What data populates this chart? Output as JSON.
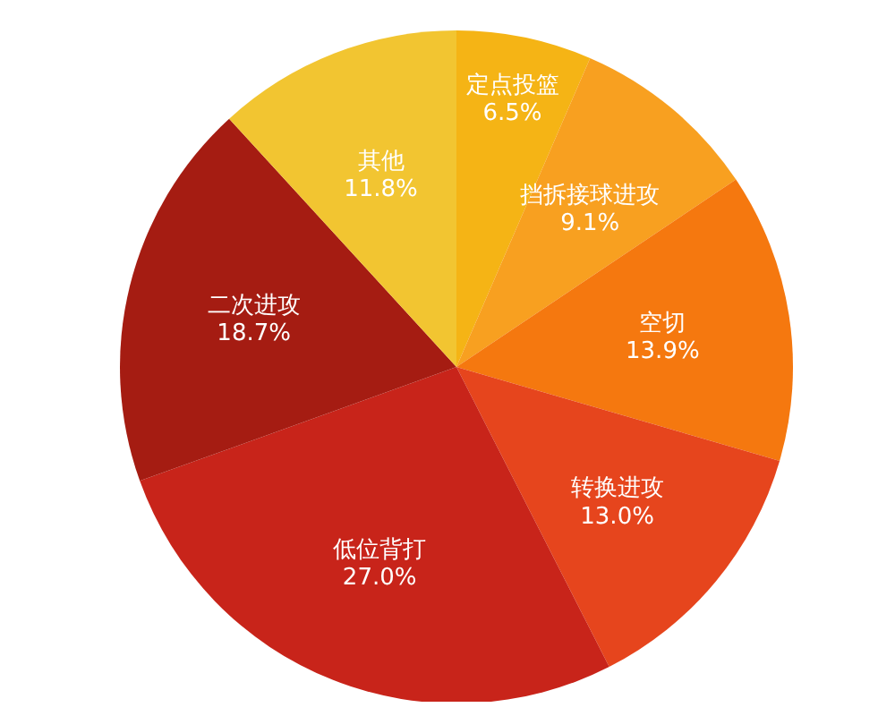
{
  "chart_data": {
    "type": "pie",
    "categories": [
      "定点投篮",
      "挡拆接球进攻",
      "空切",
      "转换进攻",
      "低位背打",
      "二次进攻",
      "其他"
    ],
    "values": [
      6.5,
      9.1,
      13.9,
      13.0,
      27.0,
      18.7,
      11.8
    ],
    "value_labels": [
      "6.5%",
      "9.1%",
      "13.9%",
      "13.0%",
      "27.0%",
      "18.7%",
      "11.8%"
    ],
    "colors": [
      "#f5b415",
      "#f8a020",
      "#f5780f",
      "#e6451d",
      "#c8241a",
      "#a51c12",
      "#f2c531"
    ]
  }
}
